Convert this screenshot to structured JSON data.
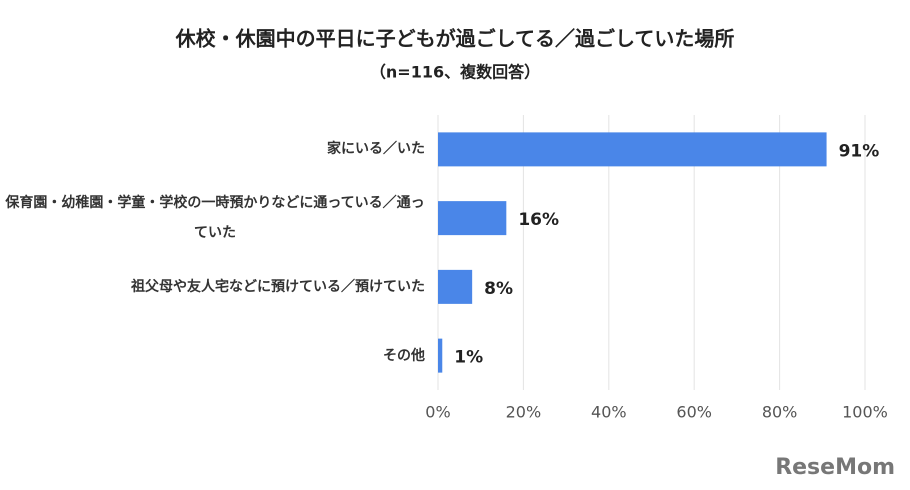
{
  "chart_data": {
    "type": "bar",
    "orientation": "horizontal",
    "title": "休校・休園中の平日に子どもが過ごしてる／過ごしていた場所",
    "subtitle": "（n=116、複数回答）",
    "categories": [
      "家にいる／いた",
      "保育園・幼稚園・学童・学校の一時預かりなどに通っている／通っていた",
      "祖父母や友人宅などに預けている／預けていた",
      "その他"
    ],
    "values": [
      91,
      16,
      8,
      1
    ],
    "value_labels": [
      "91%",
      "16%",
      "8%",
      "1%"
    ],
    "color": "#4a86e8",
    "xlim": [
      0,
      100
    ],
    "xticks": [
      {
        "value": 0,
        "label": "0%"
      },
      {
        "value": 20,
        "label": "20%"
      },
      {
        "value": 40,
        "label": "40%"
      },
      {
        "value": 60,
        "label": "60%"
      },
      {
        "value": 80,
        "label": "80%"
      },
      {
        "value": 100,
        "label": "100%"
      }
    ],
    "grid": true,
    "watermark": "ReseMom"
  }
}
